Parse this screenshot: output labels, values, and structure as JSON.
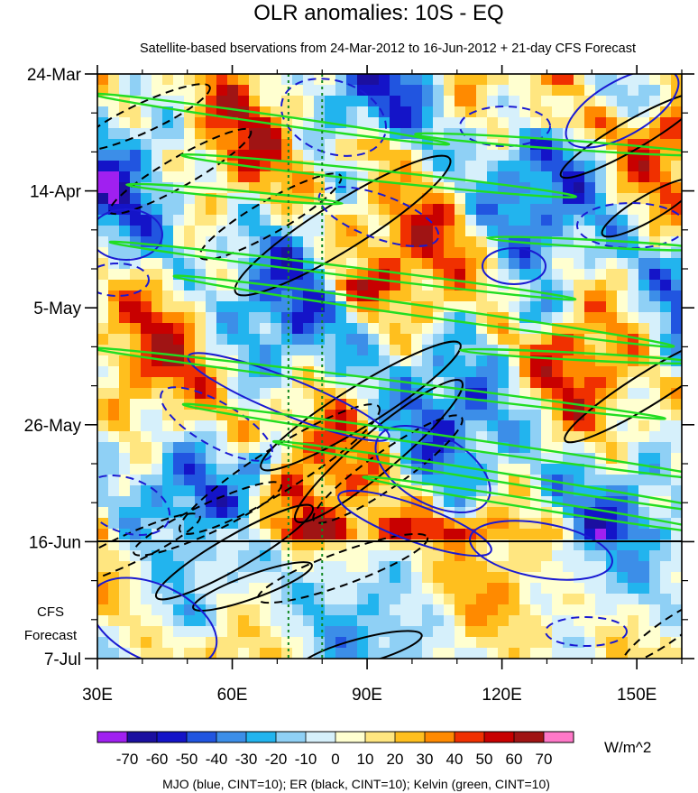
{
  "chart_data": {
    "type": "heatmap",
    "title": "OLR anomalies: 10S - EQ",
    "subtitle": "Satellite-based bservations from 24-Mar-2012 to 16-Jun-2012 + 21-day CFS Forecast",
    "x_ticks": [
      {
        "value": 30,
        "label": "30E"
      },
      {
        "value": 60,
        "label": "60E"
      },
      {
        "value": 90,
        "label": "90E"
      },
      {
        "value": 120,
        "label": "120E"
      },
      {
        "value": 150,
        "label": "150E"
      }
    ],
    "xlim": [
      30,
      160
    ],
    "y_ticks": [
      {
        "day": 0,
        "label": "24-Mar"
      },
      {
        "day": 21,
        "label": "14-Apr"
      },
      {
        "day": 42,
        "label": "5-May"
      },
      {
        "day": 63,
        "label": "26-May"
      },
      {
        "day": 84,
        "label": "16-Jun"
      },
      {
        "day": 105,
        "label": "7-Jul"
      }
    ],
    "ylim_days": [
      0,
      105
    ],
    "forecast_start_day": 84,
    "forecast_label_lines": [
      "CFS",
      "Forecast"
    ],
    "reference_longitudes": [
      72.5,
      80
    ],
    "colorbar": {
      "unit": "W/m^2",
      "labels": [
        "-70",
        "-60",
        "-50",
        "-40",
        "-30",
        "-20",
        "-10",
        "0",
        "10",
        "20",
        "30",
        "40",
        "50",
        "60",
        "70"
      ],
      "colors": [
        "#a020f0",
        "#1b0fa0",
        "#1414c8",
        "#2155e0",
        "#3c8ee8",
        "#22b4ee",
        "#8fd0f5",
        "#d6f0fb",
        "#ffffd0",
        "#ffe680",
        "#ffbf1e",
        "#ff8a00",
        "#f03000",
        "#c80000",
        "#a01414",
        "#ff78c8"
      ]
    },
    "footnote": "MJO (blue, CINT=10); ER (black, CINT=10); Kelvin (green, CINT=10)",
    "contour_colors": {
      "mjo": "#1a1ad2",
      "er": "#000000",
      "kelvin": "#22dd22",
      "ref_line": "#118822"
    }
  }
}
